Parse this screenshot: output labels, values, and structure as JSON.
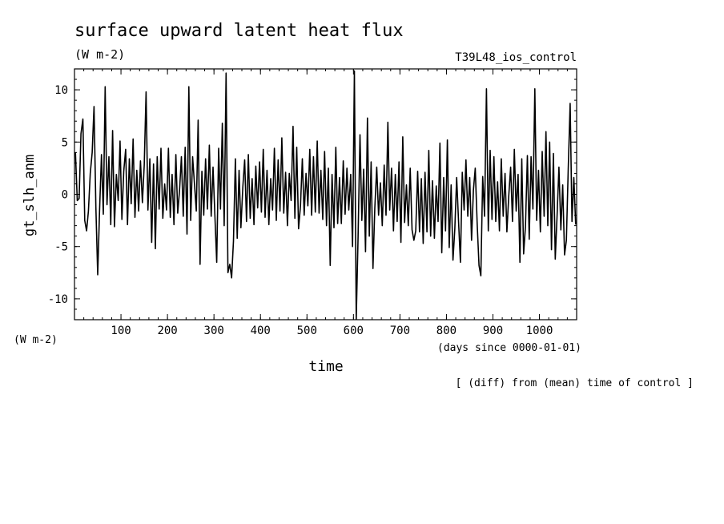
{
  "chart_data": {
    "type": "line",
    "title": "surface upward latent heat flux",
    "units": "(W m-2)",
    "experiment": "T39L48_ios_control",
    "ylabel": "gt_slh_anm",
    "yunits": "(W m-2)",
    "xlabel": "time",
    "xunits": "(days since 0000-01-01)",
    "note": "[ (diff) from (mean) time of control ]",
    "xlim": [
      0,
      1080
    ],
    "ylim": [
      -12,
      12
    ],
    "xticks": [
      100,
      200,
      300,
      400,
      500,
      600,
      700,
      800,
      900,
      1000
    ],
    "yticks": [
      10,
      5,
      0,
      -5,
      -10
    ],
    "grid": false,
    "series": [
      {
        "values": [
          [
            2,
            4.0
          ],
          [
            6,
            -0.6
          ],
          [
            10,
            -0.4
          ],
          [
            14,
            5.8
          ],
          [
            18,
            7.2
          ],
          [
            22,
            -2.5
          ],
          [
            26,
            -3.5
          ],
          [
            30,
            -1.6
          ],
          [
            34,
            2.0
          ],
          [
            38,
            4.0
          ],
          [
            42,
            8.4
          ],
          [
            46,
            -1.2
          ],
          [
            50,
            -7.7
          ],
          [
            54,
            -1.6
          ],
          [
            58,
            3.8
          ],
          [
            62,
            -1.9
          ],
          [
            66,
            10.3
          ],
          [
            70,
            -1.0
          ],
          [
            74,
            3.6
          ],
          [
            78,
            -2.9
          ],
          [
            82,
            6.1
          ],
          [
            86,
            -3.1
          ],
          [
            90,
            1.9
          ],
          [
            94,
            -0.6
          ],
          [
            98,
            5.1
          ],
          [
            102,
            -2.4
          ],
          [
            106,
            2.2
          ],
          [
            110,
            4.3
          ],
          [
            114,
            -2.9
          ],
          [
            118,
            3.4
          ],
          [
            122,
            -0.9
          ],
          [
            126,
            5.3
          ],
          [
            130,
            -2.2
          ],
          [
            134,
            2.3
          ],
          [
            138,
            -1.6
          ],
          [
            142,
            3.2
          ],
          [
            146,
            -0.8
          ],
          [
            150,
            2.8
          ],
          [
            154,
            9.8
          ],
          [
            158,
            -1.5
          ],
          [
            162,
            3.4
          ],
          [
            166,
            -4.6
          ],
          [
            170,
            2.9
          ],
          [
            174,
            -5.2
          ],
          [
            178,
            3.6
          ],
          [
            182,
            -1.4
          ],
          [
            186,
            4.4
          ],
          [
            190,
            -2.3
          ],
          [
            194,
            1.0
          ],
          [
            198,
            -1.5
          ],
          [
            202,
            4.4
          ],
          [
            206,
            -2.2
          ],
          [
            210,
            1.9
          ],
          [
            214,
            -2.9
          ],
          [
            218,
            3.8
          ],
          [
            222,
            -1.8
          ],
          [
            226,
            0.4
          ],
          [
            230,
            3.6
          ],
          [
            234,
            -2.1
          ],
          [
            238,
            4.5
          ],
          [
            242,
            -3.8
          ],
          [
            246,
            10.3
          ],
          [
            250,
            -2.5
          ],
          [
            254,
            3.6
          ],
          [
            258,
            1.0
          ],
          [
            262,
            -1.6
          ],
          [
            266,
            7.1
          ],
          [
            270,
            -6.7
          ],
          [
            274,
            2.2
          ],
          [
            278,
            -2.0
          ],
          [
            282,
            3.4
          ],
          [
            286,
            -1.4
          ],
          [
            290,
            4.7
          ],
          [
            294,
            -2.1
          ],
          [
            298,
            2.6
          ],
          [
            302,
            -2.0
          ],
          [
            306,
            -6.5
          ],
          [
            310,
            4.4
          ],
          [
            314,
            -1.4
          ],
          [
            318,
            6.8
          ],
          [
            322,
            -3.0
          ],
          [
            326,
            11.6
          ],
          [
            330,
            -7.5
          ],
          [
            334,
            -6.7
          ],
          [
            338,
            -8.0
          ],
          [
            342,
            -4.5
          ],
          [
            346,
            3.4
          ],
          [
            350,
            -4.2
          ],
          [
            354,
            2.3
          ],
          [
            358,
            -3.2
          ],
          [
            362,
            0.7
          ],
          [
            366,
            3.3
          ],
          [
            370,
            -2.6
          ],
          [
            374,
            3.8
          ],
          [
            378,
            -2.3
          ],
          [
            382,
            1.5
          ],
          [
            386,
            -2.9
          ],
          [
            390,
            2.7
          ],
          [
            394,
            -1.3
          ],
          [
            398,
            3.1
          ],
          [
            402,
            -1.7
          ],
          [
            406,
            4.3
          ],
          [
            410,
            -2.2
          ],
          [
            414,
            2.3
          ],
          [
            418,
            -2.9
          ],
          [
            422,
            1.5
          ],
          [
            426,
            -1.5
          ],
          [
            430,
            4.4
          ],
          [
            434,
            -2.5
          ],
          [
            438,
            3.3
          ],
          [
            442,
            -1.6
          ],
          [
            446,
            5.4
          ],
          [
            450,
            -1.8
          ],
          [
            454,
            2.1
          ],
          [
            458,
            -3.0
          ],
          [
            462,
            2.0
          ],
          [
            466,
            -0.6
          ],
          [
            470,
            6.5
          ],
          [
            474,
            -2.3
          ],
          [
            478,
            4.5
          ],
          [
            482,
            -3.3
          ],
          [
            486,
            -1.1
          ],
          [
            490,
            3.4
          ],
          [
            494,
            -2.0
          ],
          [
            498,
            2.0
          ],
          [
            502,
            -1.1
          ],
          [
            506,
            4.3
          ],
          [
            510,
            -2.0
          ],
          [
            514,
            3.6
          ],
          [
            518,
            -1.7
          ],
          [
            522,
            5.1
          ],
          [
            526,
            -1.8
          ],
          [
            530,
            2.3
          ],
          [
            534,
            -2.4
          ],
          [
            538,
            4.1
          ],
          [
            542,
            -3.0
          ],
          [
            546,
            2.5
          ],
          [
            550,
            -6.8
          ],
          [
            554,
            1.9
          ],
          [
            558,
            -3.2
          ],
          [
            562,
            4.5
          ],
          [
            566,
            -2.8
          ],
          [
            570,
            1.6
          ],
          [
            574,
            -2.8
          ],
          [
            578,
            3.2
          ],
          [
            582,
            -1.9
          ],
          [
            586,
            2.5
          ],
          [
            590,
            -1.5
          ],
          [
            594,
            1.9
          ],
          [
            598,
            -5.0
          ],
          [
            602,
            11.8
          ],
          [
            606,
            -12.0
          ],
          [
            610,
            -4.1
          ],
          [
            614,
            5.7
          ],
          [
            618,
            -2.5
          ],
          [
            622,
            2.4
          ],
          [
            626,
            -5.5
          ],
          [
            630,
            7.3
          ],
          [
            634,
            -4.0
          ],
          [
            638,
            3.1
          ],
          [
            642,
            -7.1
          ],
          [
            646,
            -1.3
          ],
          [
            650,
            2.6
          ],
          [
            654,
            -2.0
          ],
          [
            658,
            1.1
          ],
          [
            662,
            -3.0
          ],
          [
            666,
            2.8
          ],
          [
            670,
            -2.0
          ],
          [
            674,
            6.9
          ],
          [
            678,
            -1.5
          ],
          [
            682,
            2.5
          ],
          [
            686,
            -3.5
          ],
          [
            690,
            1.9
          ],
          [
            694,
            -2.6
          ],
          [
            698,
            3.1
          ],
          [
            702,
            -4.6
          ],
          [
            706,
            5.5
          ],
          [
            710,
            -2.7
          ],
          [
            714,
            0.9
          ],
          [
            718,
            -3.0
          ],
          [
            722,
            2.5
          ],
          [
            726,
            -3.4
          ],
          [
            730,
            -4.4
          ],
          [
            734,
            -3.5
          ],
          [
            738,
            2.2
          ],
          [
            742,
            -3.6
          ],
          [
            746,
            1.5
          ],
          [
            750,
            -4.7
          ],
          [
            754,
            2.1
          ],
          [
            758,
            -3.6
          ],
          [
            762,
            4.2
          ],
          [
            766,
            -4.0
          ],
          [
            770,
            1.3
          ],
          [
            774,
            -4.2
          ],
          [
            778,
            0.8
          ],
          [
            782,
            -2.6
          ],
          [
            786,
            4.9
          ],
          [
            790,
            -5.6
          ],
          [
            794,
            1.6
          ],
          [
            798,
            -3.5
          ],
          [
            802,
            5.2
          ],
          [
            806,
            -5.1
          ],
          [
            810,
            0.9
          ],
          [
            814,
            -6.3
          ],
          [
            818,
            -3.3
          ],
          [
            822,
            1.6
          ],
          [
            826,
            -2.5
          ],
          [
            830,
            -6.5
          ],
          [
            834,
            2.1
          ],
          [
            838,
            -1.5
          ],
          [
            842,
            3.3
          ],
          [
            846,
            -2.1
          ],
          [
            850,
            1.6
          ],
          [
            854,
            -4.4
          ],
          [
            858,
            0.4
          ],
          [
            862,
            2.5
          ],
          [
            866,
            -2.8
          ],
          [
            870,
            -6.8
          ],
          [
            874,
            -7.8
          ],
          [
            878,
            1.7
          ],
          [
            882,
            -2.1
          ],
          [
            886,
            10.1
          ],
          [
            890,
            -3.5
          ],
          [
            894,
            4.2
          ],
          [
            898,
            -2.4
          ],
          [
            902,
            3.6
          ],
          [
            906,
            -2.6
          ],
          [
            910,
            1.2
          ],
          [
            914,
            -3.5
          ],
          [
            918,
            3.4
          ],
          [
            922,
            -2.1
          ],
          [
            926,
            2.0
          ],
          [
            930,
            -3.6
          ],
          [
            934,
            -0.2
          ],
          [
            938,
            2.6
          ],
          [
            942,
            -2.6
          ],
          [
            946,
            4.3
          ],
          [
            950,
            -1.6
          ],
          [
            954,
            1.9
          ],
          [
            958,
            -6.5
          ],
          [
            962,
            3.4
          ],
          [
            966,
            -5.7
          ],
          [
            970,
            -3.1
          ],
          [
            974,
            3.7
          ],
          [
            978,
            -4.3
          ],
          [
            982,
            3.6
          ],
          [
            986,
            -1.4
          ],
          [
            990,
            10.1
          ],
          [
            994,
            -2.5
          ],
          [
            998,
            2.3
          ],
          [
            1002,
            -3.6
          ],
          [
            1006,
            4.1
          ],
          [
            1010,
            -2.1
          ],
          [
            1014,
            6.0
          ],
          [
            1018,
            -3.0
          ],
          [
            1022,
            5.0
          ],
          [
            1026,
            -5.3
          ],
          [
            1030,
            3.9
          ],
          [
            1034,
            -6.2
          ],
          [
            1038,
            -2.0
          ],
          [
            1042,
            2.6
          ],
          [
            1046,
            -3.4
          ],
          [
            1050,
            0.9
          ],
          [
            1054,
            -5.8
          ],
          [
            1058,
            -4.4
          ],
          [
            1062,
            2.4
          ],
          [
            1066,
            8.7
          ],
          [
            1070,
            -2.6
          ],
          [
            1074,
            1.6
          ],
          [
            1078,
            -2.9
          ]
        ]
      }
    ]
  }
}
